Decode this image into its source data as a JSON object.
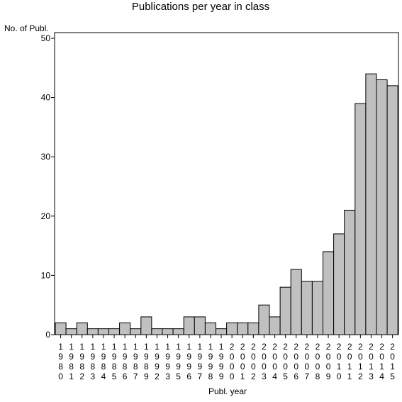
{
  "chart_data": {
    "type": "bar",
    "title": "Publications per year in class",
    "ylabel": "No. of Publ.",
    "xlabel": "Publ. year",
    "ylim": [
      0,
      50
    ],
    "yticks": [
      0,
      10,
      20,
      30,
      40,
      50
    ],
    "grid": false,
    "bar_color": "#c0c0c0",
    "categories": [
      "1980",
      "1981",
      "1982",
      "1983",
      "1984",
      "1985",
      "1986",
      "1987",
      "1989",
      "1992",
      "1993",
      "1995",
      "1996",
      "1997",
      "1998",
      "1999",
      "2000",
      "2001",
      "2002",
      "2003",
      "2004",
      "2005",
      "2006",
      "2007",
      "2008",
      "2009",
      "2010",
      "2011",
      "2012",
      "2013",
      "2014",
      "2015"
    ],
    "values": [
      2,
      1,
      2,
      1,
      1,
      1,
      2,
      1,
      3,
      1,
      1,
      1,
      3,
      3,
      2,
      1,
      2,
      2,
      2,
      5,
      3,
      8,
      11,
      9,
      9,
      14,
      17,
      21,
      39,
      44,
      43,
      42
    ]
  }
}
